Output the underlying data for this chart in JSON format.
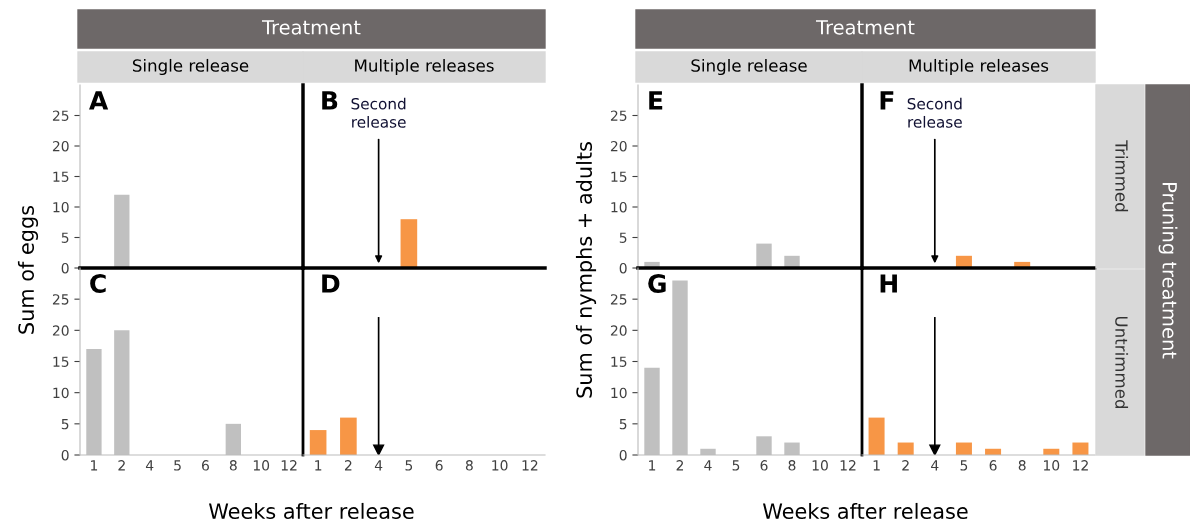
{
  "chart_data": [
    {
      "type": "bar",
      "title": "A",
      "ylabel": "Sum of eggs",
      "annotations": [
        "Treatment",
        "Single release"
      ],
      "categories": [
        "1",
        "2",
        "4",
        "5",
        "6",
        "8",
        "10",
        "12"
      ],
      "values": [
        0,
        12,
        0,
        0,
        0,
        0,
        0,
        0
      ],
      "color": "#c0c0c0",
      "ylim": [
        0,
        30
      ],
      "yticks": [
        0,
        5,
        10,
        15,
        20,
        25
      ],
      "tick_labels": "y"
    },
    {
      "type": "bar",
      "title": "B",
      "annotations": [
        "Multiple releases",
        {
          "text": "Second release",
          "x": "4",
          "y": 0
        }
      ],
      "categories": [
        "1",
        "2",
        "4",
        "5",
        "6",
        "8",
        "10",
        "12"
      ],
      "values": [
        0,
        0,
        0,
        8,
        0,
        0,
        0,
        0
      ],
      "color": "#f79646",
      "ylim": [
        0,
        30
      ],
      "yticks": [
        0,
        5,
        10,
        15,
        20,
        25
      ],
      "tick_labels": false
    },
    {
      "type": "bar",
      "title": "C",
      "xlabel": "Weeks after release",
      "categories": [
        "1",
        "2",
        "4",
        "5",
        "6",
        "8",
        "10",
        "12"
      ],
      "values": [
        17,
        20,
        0,
        0,
        0,
        5,
        0,
        0
      ],
      "color": "#c0c0c0",
      "ylim": [
        0,
        30
      ],
      "yticks": [
        0,
        5,
        10,
        15,
        20,
        25
      ]
    },
    {
      "type": "bar",
      "title": "D",
      "categories": [
        "1",
        "2",
        "4",
        "5",
        "6",
        "8",
        "10",
        "12"
      ],
      "values": [
        4,
        6,
        0,
        0,
        0,
        0,
        0,
        0
      ],
      "color": "#f79646",
      "ylim": [
        0,
        30
      ],
      "yticks": [
        0,
        5,
        10,
        15,
        20,
        25
      ],
      "tick_labels": "x",
      "ref_lines": [
        {
          "axis": "x",
          "value": "4"
        }
      ]
    },
    {
      "type": "bar",
      "title": "E",
      "ylabel": "Sum of nymphs + adults",
      "annotations": [
        "Treatment",
        "Single release"
      ],
      "categories": [
        "1",
        "2",
        "4",
        "5",
        "6",
        "8",
        "10",
        "12"
      ],
      "values": [
        1,
        0,
        0,
        0,
        4,
        2,
        0,
        0
      ],
      "color": "#c0c0c0",
      "ylim": [
        0,
        30
      ],
      "yticks": [
        0,
        5,
        10,
        15,
        20,
        25
      ],
      "tick_labels": "y"
    },
    {
      "type": "bar",
      "title": "F",
      "annotations": [
        "Multiple releases",
        {
          "text": "Second release",
          "x": "4",
          "y": 0
        },
        "Trimmed",
        "Pruning treatment"
      ],
      "categories": [
        "1",
        "2",
        "4",
        "5",
        "6",
        "8",
        "10",
        "12"
      ],
      "values": [
        0,
        0,
        0,
        2,
        0,
        1,
        0,
        0
      ],
      "color": "#f79646",
      "ylim": [
        0,
        30
      ],
      "yticks": [
        0,
        5,
        10,
        15,
        20,
        25
      ],
      "tick_labels": false
    },
    {
      "type": "bar",
      "title": "G",
      "xlabel": "Weeks after release",
      "categories": [
        "1",
        "2",
        "4",
        "5",
        "6",
        "8",
        "10",
        "12"
      ],
      "values": [
        14,
        28,
        1,
        0,
        3,
        2,
        0,
        0
      ],
      "color": "#c0c0c0",
      "ylim": [
        0,
        30
      ],
      "yticks": [
        0,
        5,
        10,
        15,
        20,
        25
      ]
    },
    {
      "type": "bar",
      "title": "H",
      "annotations": [
        "Untrimmed"
      ],
      "categories": [
        "1",
        "2",
        "4",
        "5",
        "6",
        "8",
        "10",
        "12"
      ],
      "values": [
        6,
        2,
        0,
        2,
        1,
        0,
        1,
        2
      ],
      "color": "#f79646",
      "ylim": [
        0,
        30
      ],
      "yticks": [
        0,
        5,
        10,
        15,
        20,
        25
      ],
      "tick_labels": "x",
      "ref_lines": [
        {
          "axis": "x",
          "value": "4"
        }
      ]
    }
  ]
}
